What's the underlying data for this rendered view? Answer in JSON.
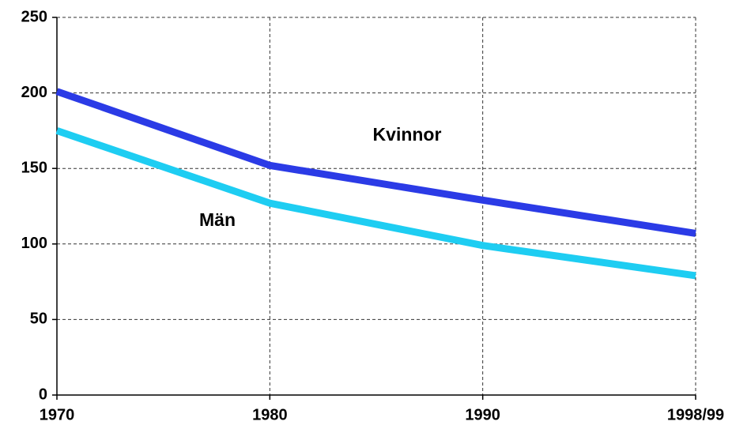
{
  "chart_data": {
    "type": "line",
    "categories": [
      "1970",
      "1980",
      "1990",
      "1998/99"
    ],
    "series": [
      {
        "name": "Kvinnor",
        "color": "#2b3be6",
        "values": [
          201,
          152,
          129,
          107
        ]
      },
      {
        "name": "Män",
        "color": "#1ecdf2",
        "values": [
          175,
          127,
          99,
          79
        ]
      }
    ],
    "ylim": [
      0,
      250
    ],
    "yticks": [
      0,
      50,
      100,
      150,
      200,
      250
    ],
    "grid": true
  }
}
